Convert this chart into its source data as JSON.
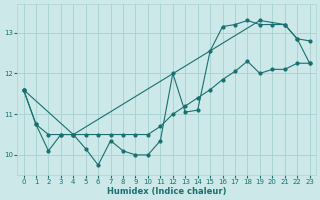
{
  "xlabel": "Humidex (Indice chaleur)",
  "xlim": [
    -0.5,
    23.5
  ],
  "ylim": [
    9.5,
    13.7
  ],
  "yticks": [
    10,
    11,
    12,
    13
  ],
  "xticks": [
    0,
    1,
    2,
    3,
    4,
    5,
    6,
    7,
    8,
    9,
    10,
    11,
    12,
    13,
    14,
    15,
    16,
    17,
    18,
    19,
    20,
    21,
    22,
    23
  ],
  "bg_color": "#cce8e8",
  "grid_color": "#aad4d4",
  "line_color": "#1a7070",
  "line1_x": [
    0,
    1,
    2,
    3,
    4,
    5,
    6,
    7,
    8,
    9,
    10,
    11,
    12,
    13,
    14,
    15,
    16,
    17,
    18,
    19,
    20,
    21,
    22,
    23
  ],
  "line1_y": [
    11.6,
    10.75,
    10.1,
    10.5,
    10.5,
    10.15,
    9.75,
    10.35,
    10.1,
    10.0,
    10.0,
    10.35,
    12.0,
    11.05,
    11.1,
    12.55,
    13.15,
    13.2,
    13.3,
    13.2,
    13.2,
    13.2,
    12.85,
    12.8
  ],
  "line2_x": [
    0,
    1,
    2,
    3,
    4,
    5,
    6,
    7,
    8,
    9,
    10,
    11,
    12,
    13,
    14,
    15,
    16,
    17,
    18,
    19,
    20,
    21,
    22,
    23
  ],
  "line2_y": [
    11.6,
    10.75,
    10.5,
    10.5,
    10.5,
    10.5,
    10.5,
    10.5,
    10.5,
    10.5,
    10.5,
    10.7,
    11.0,
    11.2,
    11.4,
    11.6,
    11.85,
    12.05,
    12.3,
    12.0,
    12.1,
    12.1,
    12.25,
    12.25
  ],
  "line3_x": [
    0,
    4,
    19,
    21,
    22,
    23
  ],
  "line3_y": [
    11.6,
    10.5,
    13.3,
    13.2,
    12.85,
    12.25
  ]
}
